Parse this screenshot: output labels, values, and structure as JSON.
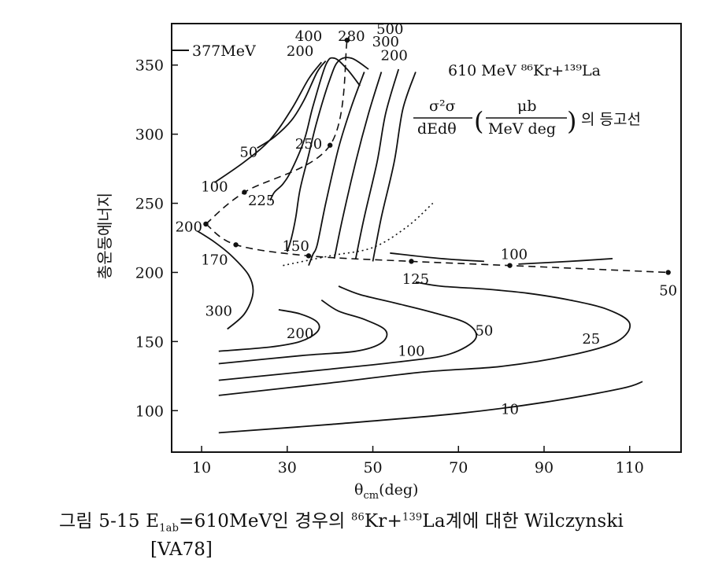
{
  "chart_data": {
    "type": "line",
    "title": "610 MeV ⁸⁶Kr+¹³⁹La",
    "subtitle_lhs_num": "σ²σ",
    "subtitle_lhs_den": "dEdθ",
    "subtitle_unit_num": "μb",
    "subtitle_unit_den": "MeV deg",
    "subtitle_suffix": "의 등고선",
    "xlabel": "θcm(deg)",
    "ylabel": "총운동에너지",
    "xlim": [
      3,
      122
    ],
    "ylim": [
      70,
      380
    ],
    "xticks": [
      10,
      30,
      50,
      70,
      90,
      110
    ],
    "yticks": [
      100,
      150,
      200,
      250,
      300,
      350
    ],
    "beam_energy_label": "377MeV",
    "beam_energy_value": 377,
    "contours": [
      {
        "level": "10",
        "points": [
          [
            14,
            84
          ],
          [
            40,
            90
          ],
          [
            70,
            98
          ],
          [
            90,
            106
          ],
          [
            108,
            116
          ],
          [
            113,
            121
          ]
        ]
      },
      {
        "level": "25",
        "points": [
          [
            14,
            111
          ],
          [
            40,
            120
          ],
          [
            62,
            128
          ],
          [
            80,
            132
          ],
          [
            96,
            140
          ],
          [
            107,
            150
          ],
          [
            110,
            163
          ],
          [
            105,
            173
          ],
          [
            96,
            180
          ],
          [
            86,
            185
          ],
          [
            76,
            188
          ],
          [
            66,
            190
          ],
          [
            60,
            193
          ]
        ]
      },
      {
        "level": "50",
        "points": [
          [
            14,
            122
          ],
          [
            40,
            130
          ],
          [
            58,
            136
          ],
          [
            68,
            141
          ],
          [
            74,
            152
          ],
          [
            72,
            163
          ],
          [
            64,
            171
          ],
          [
            55,
            178
          ],
          [
            47,
            184
          ],
          [
            42,
            190
          ]
        ]
      },
      {
        "level": "100",
        "points": [
          [
            14,
            134
          ],
          [
            34,
            140
          ],
          [
            46,
            143
          ],
          [
            52,
            149
          ],
          [
            53,
            158
          ],
          [
            48,
            166
          ],
          [
            42,
            172
          ],
          [
            38,
            180
          ]
        ]
      },
      {
        "level": "200",
        "points": [
          [
            14,
            143
          ],
          [
            26,
            146
          ],
          [
            33,
            150
          ],
          [
            37,
            157
          ],
          [
            37,
            164
          ],
          [
            33,
            170
          ],
          [
            28,
            173
          ]
        ]
      },
      {
        "level": "300",
        "points": [
          [
            16,
            159
          ],
          [
            20,
            170
          ],
          [
            22,
            185
          ],
          [
            21,
            198
          ],
          [
            17,
            212
          ],
          [
            13,
            222
          ],
          [
            9,
            230
          ]
        ]
      },
      {
        "level": "250a",
        "points": [
          [
            26,
            252
          ],
          [
            27,
            258
          ],
          [
            29,
            264
          ],
          [
            31,
            274
          ],
          [
            34,
            296
          ],
          [
            36,
            320
          ],
          [
            39,
            350
          ],
          [
            41,
            355
          ],
          [
            44,
            347
          ],
          [
            47,
            335
          ]
        ]
      },
      {
        "level": "200b",
        "points": [
          [
            30,
            215
          ],
          [
            31,
            225
          ],
          [
            32,
            240
          ],
          [
            33,
            260
          ],
          [
            35,
            285
          ],
          [
            37,
            310
          ],
          [
            40,
            340
          ],
          [
            42,
            353
          ],
          [
            45,
            355
          ],
          [
            49,
            347
          ]
        ]
      },
      {
        "level": "150",
        "points": [
          [
            35,
            205
          ],
          [
            36,
            213
          ],
          [
            37,
            220
          ],
          [
            39,
            250
          ],
          [
            42,
            290
          ],
          [
            45,
            320
          ],
          [
            48,
            345
          ]
        ]
      },
      {
        "level": "hi1",
        "points": [
          [
            41,
            210
          ],
          [
            43,
            240
          ],
          [
            46,
            280
          ],
          [
            49,
            315
          ],
          [
            52,
            345
          ]
        ]
      },
      {
        "level": "hi2",
        "points": [
          [
            46,
            210
          ],
          [
            48,
            240
          ],
          [
            51,
            280
          ],
          [
            53,
            315
          ],
          [
            56,
            347
          ]
        ]
      },
      {
        "level": "hi3",
        "points": [
          [
            50,
            208
          ],
          [
            52,
            240
          ],
          [
            55,
            280
          ],
          [
            57,
            318
          ],
          [
            60,
            345
          ]
        ]
      },
      {
        "level": "50b",
        "points": [
          [
            23,
            290
          ],
          [
            27,
            298
          ],
          [
            31,
            310
          ],
          [
            34,
            325
          ],
          [
            37,
            345
          ],
          [
            39,
            353
          ]
        ]
      },
      {
        "level": "100b",
        "points": [
          [
            13,
            265
          ],
          [
            20,
            280
          ],
          [
            26,
            296
          ],
          [
            31,
            318
          ],
          [
            35,
            340
          ],
          [
            38,
            352
          ]
        ]
      },
      {
        "level": "100c",
        "points": [
          [
            84,
            206
          ],
          [
            96,
            208
          ],
          [
            106,
            210
          ]
        ]
      },
      {
        "level": "100d",
        "points": [
          [
            54,
            214
          ],
          [
            66,
            210
          ],
          [
            76,
            208
          ]
        ]
      }
    ],
    "dashed_ridge": {
      "points": [
        [
          11,
          235
        ],
        [
          18,
          220
        ],
        [
          35,
          212
        ],
        [
          59,
          208
        ],
        [
          82,
          205
        ],
        [
          119,
          200
        ]
      ],
      "marker_labels": [
        "200",
        "170",
        "150",
        "125",
        "100",
        "50"
      ]
    },
    "dashed_upper": {
      "points": [
        [
          11,
          235
        ],
        [
          20,
          258
        ],
        [
          40,
          292
        ],
        [
          44,
          368
        ]
      ],
      "marker_labels": [
        "200",
        "225",
        "250",
        "280"
      ]
    },
    "dotted_curve": {
      "points": [
        [
          29,
          205
        ],
        [
          40,
          212
        ],
        [
          50,
          218
        ],
        [
          58,
          233
        ],
        [
          64,
          250
        ]
      ]
    },
    "contour_labels": [
      {
        "text": "10",
        "x": 82,
        "y": 101
      },
      {
        "text": "25",
        "x": 101,
        "y": 152
      },
      {
        "text": "50",
        "x": 76,
        "y": 158
      },
      {
        "text": "100",
        "x": 59,
        "y": 143
      },
      {
        "text": "200",
        "x": 33,
        "y": 156
      },
      {
        "text": "300",
        "x": 14,
        "y": 172
      },
      {
        "text": "50",
        "x": 21,
        "y": 287
      },
      {
        "text": "100",
        "x": 13,
        "y": 262
      },
      {
        "text": "400",
        "x": 35,
        "y": 371
      },
      {
        "text": "200",
        "x": 33,
        "y": 360
      },
      {
        "text": "500",
        "x": 54,
        "y": 376
      },
      {
        "text": "300",
        "x": 53,
        "y": 367
      },
      {
        "text": "200",
        "x": 55,
        "y": 357
      }
    ],
    "ridge_labels": [
      {
        "text": "280",
        "x": 45,
        "y": 371
      },
      {
        "text": "250",
        "x": 35,
        "y": 293
      },
      {
        "text": "225",
        "x": 24,
        "y": 252
      },
      {
        "text": "200",
        "x": 7,
        "y": 233
      },
      {
        "text": "170",
        "x": 13,
        "y": 209
      },
      {
        "text": "150",
        "x": 32,
        "y": 219
      },
      {
        "text": "125",
        "x": 60,
        "y": 195
      },
      {
        "text": "100",
        "x": 83,
        "y": 213
      },
      {
        "text": "50",
        "x": 119,
        "y": 187
      }
    ]
  },
  "caption": {
    "line1_prefix": "그림 5-15 E",
    "line1_sub": "1ab",
    "line1_mid": "=610MeV인 경우의 ",
    "line1_sup1": "86",
    "line1_kr": "Kr+",
    "line1_sup2": "139",
    "line1_end": "La계에 대한 Wilczynski",
    "line2": "[VA78]"
  }
}
